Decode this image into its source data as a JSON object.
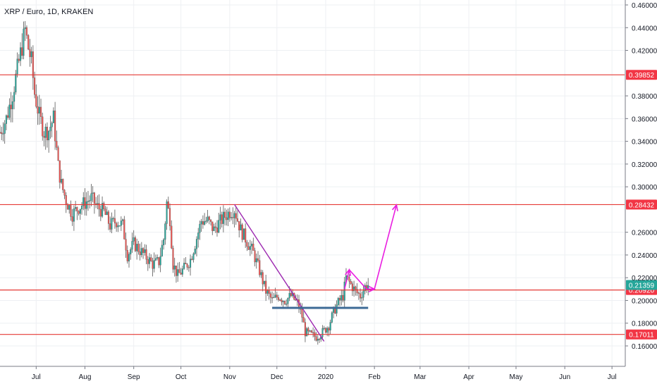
{
  "chart_data": {
    "type": "candlestick",
    "title": "XRP / Euro, 1D, KRAKEN",
    "ylim": [
      0.15,
      0.465
    ],
    "y_ticks": [
      "0.46000",
      "0.44000",
      "0.42000",
      "0.38000",
      "0.36000",
      "0.34000",
      "0.32000",
      "0.30000",
      "0.26000",
      "0.24000",
      "0.22000",
      "0.20000",
      "0.18000",
      "0.16000"
    ],
    "y_tick_values": [
      0.46,
      0.44,
      0.42,
      0.38,
      0.36,
      0.34,
      0.32,
      0.3,
      0.26,
      0.24,
      0.22,
      0.2,
      0.18,
      0.16
    ],
    "x_ticks": [
      "Jul",
      "Aug",
      "Sep",
      "Oct",
      "Nov",
      "Dec",
      "2020",
      "Feb",
      "Mar",
      "Apr",
      "May",
      "Jun",
      "Jul"
    ],
    "x_tick_dates": [
      "2019-07-01",
      "2019-08-01",
      "2019-09-01",
      "2019-10-01",
      "2019-11-01",
      "2019-12-01",
      "2020-01-01",
      "2020-02-01",
      "2020-03-01",
      "2020-04-01",
      "2020-05-01",
      "2020-06-01",
      "2020-07-01"
    ],
    "x_range": [
      "2019-06-08",
      "2020-07-09"
    ],
    "price_levels": [
      {
        "label": "0.39852",
        "value": 0.39852
      },
      {
        "label": "0.28432",
        "value": 0.28432
      },
      {
        "label": "0.20920",
        "value": 0.2092
      },
      {
        "label": "0.17011",
        "value": 0.17011
      }
    ],
    "current_price": {
      "label": "0.21359",
      "value": 0.21359
    },
    "trendline": {
      "from": {
        "date": "2019-11-04",
        "value": 0.2845
      },
      "to": {
        "date": "2019-12-31",
        "value": 0.164
      }
    },
    "support_zone": {
      "from": "2019-11-28",
      "to": "2020-01-28",
      "value": 0.1935
    },
    "projection": [
      {
        "date": "2020-01-13",
        "value": 0.21
      },
      {
        "date": "2020-01-16",
        "value": 0.227
      },
      {
        "date": "2020-01-27",
        "value": 0.21
      },
      {
        "date": "2020-02-01",
        "value": 0.21
      },
      {
        "date": "2020-02-15",
        "value": 0.284
      }
    ],
    "price_path": [
      [
        "2019-06-08",
        0.348
      ],
      [
        "2019-06-12",
        0.36
      ],
      [
        "2019-06-16",
        0.382
      ],
      [
        "2019-06-20",
        0.41
      ],
      [
        "2019-06-24",
        0.438
      ],
      [
        "2019-06-26",
        0.422
      ],
      [
        "2019-06-28",
        0.41
      ],
      [
        "2019-06-30",
        0.382
      ],
      [
        "2019-07-03",
        0.362
      ],
      [
        "2019-07-06",
        0.348
      ],
      [
        "2019-07-09",
        0.35
      ],
      [
        "2019-07-12",
        0.36
      ],
      [
        "2019-07-15",
        0.318
      ],
      [
        "2019-07-17",
        0.302
      ],
      [
        "2019-07-20",
        0.288
      ],
      [
        "2019-07-24",
        0.276
      ],
      [
        "2019-07-28",
        0.282
      ],
      [
        "2019-08-01",
        0.286
      ],
      [
        "2019-08-05",
        0.29
      ],
      [
        "2019-08-09",
        0.282
      ],
      [
        "2019-08-13",
        0.278
      ],
      [
        "2019-08-17",
        0.266
      ],
      [
        "2019-08-21",
        0.27
      ],
      [
        "2019-08-25",
        0.266
      ],
      [
        "2019-08-28",
        0.24
      ],
      [
        "2019-09-01",
        0.25
      ],
      [
        "2019-09-05",
        0.244
      ],
      [
        "2019-09-09",
        0.238
      ],
      [
        "2019-09-13",
        0.232
      ],
      [
        "2019-09-17",
        0.234
      ],
      [
        "2019-09-20",
        0.254
      ],
      [
        "2019-09-22",
        0.286
      ],
      [
        "2019-09-24",
        0.272
      ],
      [
        "2019-09-26",
        0.232
      ],
      [
        "2019-09-29",
        0.222
      ],
      [
        "2019-10-03",
        0.228
      ],
      [
        "2019-10-07",
        0.236
      ],
      [
        "2019-10-10",
        0.25
      ],
      [
        "2019-10-14",
        0.27
      ],
      [
        "2019-10-18",
        0.27
      ],
      [
        "2019-10-22",
        0.262
      ],
      [
        "2019-10-25",
        0.268
      ],
      [
        "2019-10-29",
        0.274
      ],
      [
        "2019-11-01",
        0.278
      ],
      [
        "2019-11-04",
        0.28
      ],
      [
        "2019-11-08",
        0.262
      ],
      [
        "2019-11-12",
        0.252
      ],
      [
        "2019-11-16",
        0.242
      ],
      [
        "2019-11-20",
        0.226
      ],
      [
        "2019-11-24",
        0.208
      ],
      [
        "2019-11-28",
        0.2
      ],
      [
        "2019-12-02",
        0.204
      ],
      [
        "2019-12-06",
        0.2
      ],
      [
        "2019-12-10",
        0.204
      ],
      [
        "2019-12-14",
        0.198
      ],
      [
        "2019-12-17",
        0.186
      ],
      [
        "2019-12-19",
        0.172
      ],
      [
        "2019-12-22",
        0.17
      ],
      [
        "2019-12-26",
        0.168
      ],
      [
        "2019-12-30",
        0.172
      ],
      [
        "2020-01-03",
        0.178
      ],
      [
        "2020-01-06",
        0.19
      ],
      [
        "2020-01-09",
        0.198
      ],
      [
        "2020-01-12",
        0.204
      ],
      [
        "2020-01-14",
        0.22
      ],
      [
        "2020-01-17",
        0.214
      ],
      [
        "2020-01-20",
        0.208
      ],
      [
        "2020-01-23",
        0.204
      ],
      [
        "2020-01-26",
        0.212
      ],
      [
        "2020-01-28",
        0.2136
      ]
    ]
  }
}
